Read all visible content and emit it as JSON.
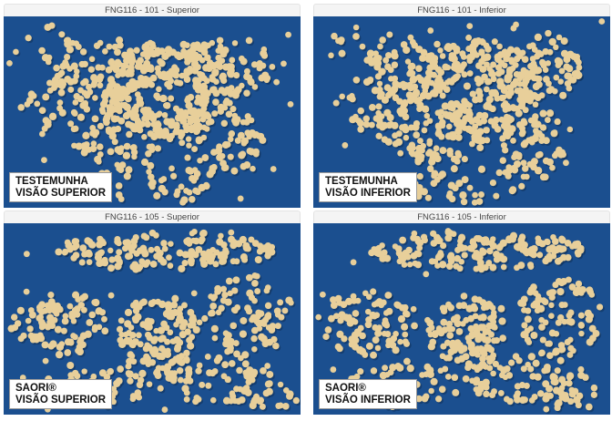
{
  "panels": [
    {
      "title": "FNG116 - 101 - Superior",
      "caption_line1": "TESTEMUNHA",
      "caption_line2": "VISÃO SUPERIOR",
      "pattern": "cluster-center"
    },
    {
      "title": "FNG116 - 101 - Inferior",
      "caption_line1": "TESTEMUNHA",
      "caption_line2": "VISÃO INFERIOR",
      "pattern": "cluster-center"
    },
    {
      "title": "FNG116 - 105 - Superior",
      "caption_line1": "SAORI®",
      "caption_line2": "VISÃO SUPERIOR",
      "pattern": "band-top-center"
    },
    {
      "title": "FNG116 - 105 - Inferior",
      "caption_line1": "SAORI®",
      "caption_line2": "VISÃO INFERIOR",
      "pattern": "band-top-center"
    }
  ],
  "colors": {
    "background_blue": "#1b4f8f",
    "seed": "#e8cf9a",
    "seed_shadow": "#0f2f57"
  }
}
